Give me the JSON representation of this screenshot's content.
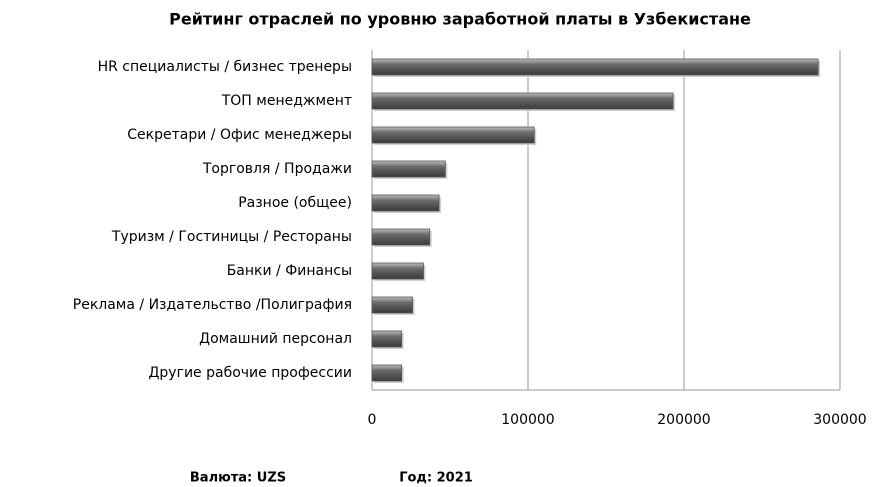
{
  "chart_data": {
    "type": "bar",
    "orientation": "horizontal",
    "title": "Рейтинг отраслей по уровню заработной платы в Узбекистане",
    "categories": [
      "HR специалисты / бизнес тренеры",
      "ТОП менеджмент",
      "Секретари / Офис менеджеры",
      "Торговля / Продажи",
      "Разное (общее)",
      "Туризм / Гостиницы / Рестораны",
      "Банки / Финансы",
      "Реклама / Издательство /Полиграфия",
      "Домашний персонал",
      "Другие рабочие профессии"
    ],
    "values": [
      286000,
      193000,
      104000,
      47000,
      43000,
      37000,
      33000,
      26000,
      19000,
      19000
    ],
    "color": "#555555",
    "xlim": [
      0,
      300000
    ],
    "xticks": [
      0,
      100000,
      200000,
      300000
    ],
    "grid": true,
    "footnotes": [
      "Валюта: UZS",
      "Год: 2021"
    ]
  }
}
